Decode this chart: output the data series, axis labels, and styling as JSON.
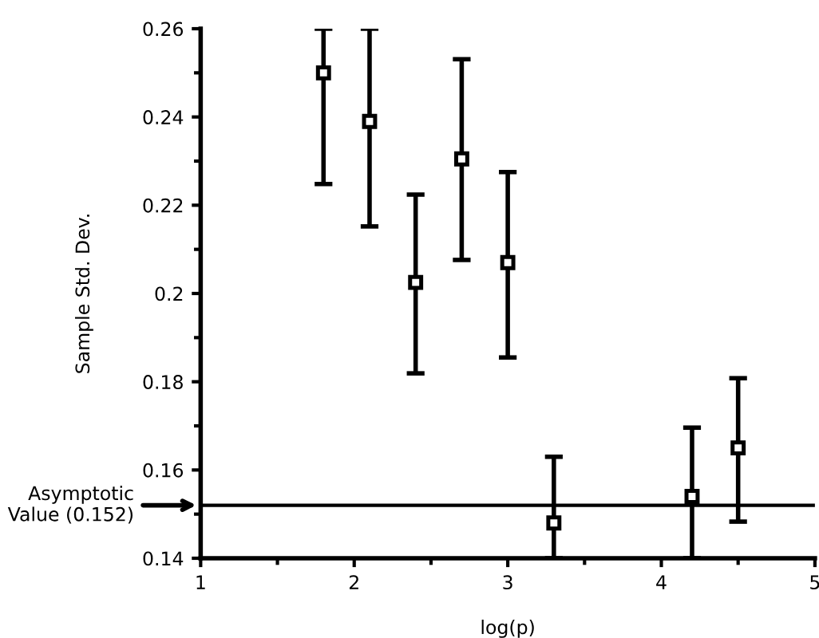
{
  "chart_data": {
    "type": "scatter",
    "xlabel": "log(p)",
    "ylabel": "Sample Std. Dev.",
    "x": [
      1.8,
      2.1,
      2.4,
      2.7,
      3.0,
      3.3,
      4.2,
      4.5
    ],
    "series": [
      {
        "color": "#000000",
        "values": [
          0.25,
          0.239,
          0.2025,
          0.2305,
          0.207,
          0.148,
          0.154,
          0.165
        ],
        "errors": [
          [
            0.2248,
            0.26
          ],
          [
            0.2152,
            0.26
          ],
          [
            0.1819,
            0.2224
          ],
          [
            0.2076,
            0.2531
          ],
          [
            0.1855,
            0.2275
          ],
          [
            0.14,
            0.163
          ],
          [
            0.14,
            0.1696
          ],
          [
            0.1483,
            0.1808
          ]
        ]
      }
    ],
    "marker": "square",
    "xlim": [
      1,
      5
    ],
    "ylim": [
      0.14,
      0.26
    ],
    "xticks": [
      1,
      2,
      3,
      4,
      5
    ],
    "yticks": [
      0.14,
      0.16,
      0.18,
      0.2,
      0.22,
      0.24,
      0.26
    ],
    "ref_lines": [
      {
        "axis": "y",
        "value": 0.152,
        "label": "Asymptotic\nValue (0.152)",
        "color": "#000000"
      }
    ],
    "grid": false,
    "legend": false
  }
}
